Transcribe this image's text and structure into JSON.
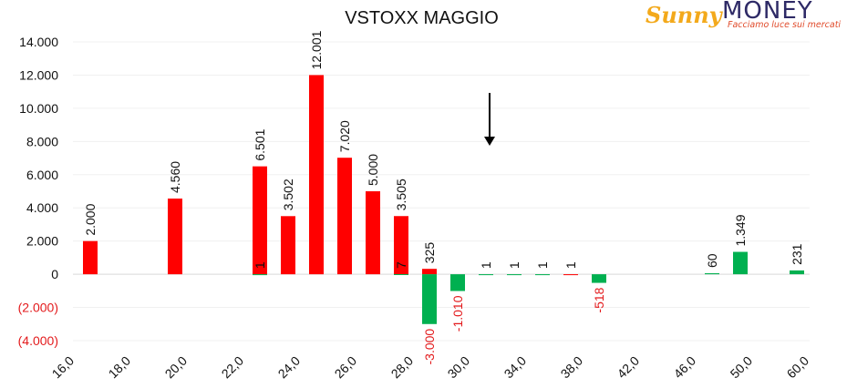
{
  "logo": {
    "script": "Sunny",
    "word": "MONEY",
    "tagline": "Facciamo luce sui mercati"
  },
  "colors": {
    "positive": "#ff0000",
    "negative": "#00b050",
    "negative_label": "#e31a1c"
  },
  "chart_data": {
    "type": "bar",
    "title": "VSTOXX MAGGIO",
    "xlabel": "",
    "ylabel": "",
    "ylim": [
      -4000,
      14000
    ],
    "y_ticks": [
      14000,
      12000,
      10000,
      8000,
      6000,
      4000,
      2000,
      0,
      -2000,
      -4000
    ],
    "y_tick_labels": [
      "14.000",
      "12.000",
      "10.000",
      "8.000",
      "6.000",
      "4.000",
      "2.000",
      "0",
      "(2.000)",
      "(4.000)"
    ],
    "x_ticks": [
      16,
      18,
      20,
      22,
      24,
      26,
      28,
      30,
      34,
      38,
      42,
      46,
      50,
      60
    ],
    "x_tick_labels": [
      "16,0",
      "18,0",
      "20,0",
      "22,0",
      "24,0",
      "26,0",
      "28,0",
      "30,0",
      "34,0",
      "38,0",
      "42,0",
      "46,0",
      "50,0",
      "60,0"
    ],
    "grid": true,
    "annotation": "arrow",
    "series": [
      {
        "color": "#ff0000",
        "x": [
          17,
          20,
          23,
          24,
          25,
          26,
          27,
          28,
          29,
          38
        ],
        "values": [
          2000,
          4560,
          6501,
          3502,
          12001,
          7020,
          5000,
          3505,
          325,
          1
        ],
        "labels": [
          "2.000",
          "4.560",
          "6.501",
          "3.502",
          "12.001",
          "7.020",
          "5.000",
          "3.505",
          "325",
          "1"
        ]
      },
      {
        "color": "#00b050",
        "x": [
          23,
          28,
          29,
          30,
          32,
          34,
          36,
          40,
          48,
          50,
          60
        ],
        "values": [
          1,
          7,
          -3000,
          -1010,
          1,
          1,
          1,
          -518,
          60,
          1349,
          231
        ],
        "labels": [
          "1",
          "7",
          "-3.000",
          "-1.010",
          "1",
          "1",
          "1",
          "-518",
          "60",
          "1.349",
          "231"
        ]
      }
    ]
  }
}
